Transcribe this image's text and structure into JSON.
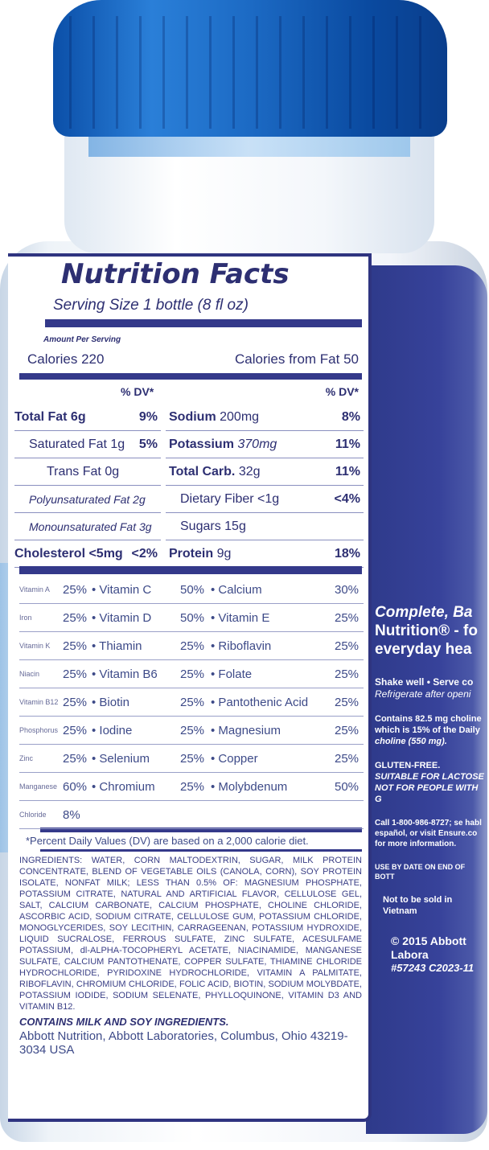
{
  "colors": {
    "cap": "#1c6ac4",
    "navy": "#2f3480",
    "panel_text": "#2d2f72"
  },
  "nutrition": {
    "title": "Nutrition Facts",
    "serving": "Serving Size 1 bottle (8 fl oz)",
    "amount_per_serving": "Amount Per Serving",
    "calories": "Calories 220",
    "calories_from_fat": "Calories from Fat 50",
    "dv_header": "% DV*",
    "left_rows": [
      {
        "label": "Total Fat 6g",
        "dv": "9%"
      },
      {
        "label": "Saturated Fat 1g",
        "dv": "5%"
      },
      {
        "label": "Trans Fat 0g",
        "dv": ""
      },
      {
        "label": "Polyunsaturated Fat 2g",
        "dv": ""
      },
      {
        "label": "Monounsaturated Fat 3g",
        "dv": ""
      },
      {
        "label": "Cholesterol <5mg",
        "dv": "<2%"
      }
    ],
    "right_rows": [
      {
        "label": "Sodium",
        "amount": "200mg",
        "dv": "8%"
      },
      {
        "label": "Potassium",
        "amount": "370mg",
        "dv": "11%"
      },
      {
        "label": "Total Carb.",
        "amount": "32g",
        "dv": "11%"
      },
      {
        "label": "Dietary Fiber <1g",
        "amount": "",
        "dv": "<4%"
      },
      {
        "label": "Sugars 15g",
        "amount": "",
        "dv": ""
      },
      {
        "label": "Protein",
        "amount": "9g",
        "dv": "18%"
      }
    ],
    "vitamins": [
      [
        "Vitamin A",
        "25%",
        "Vitamin C",
        "50%",
        "Calcium",
        "30%"
      ],
      [
        "Iron",
        "25%",
        "Vitamin D",
        "50%",
        "Vitamin E",
        "25%"
      ],
      [
        "Vitamin K",
        "25%",
        "Thiamin",
        "25%",
        "Riboflavin",
        "25%"
      ],
      [
        "Niacin",
        "25%",
        "Vitamin B6",
        "25%",
        "Folate",
        "25%"
      ],
      [
        "Vitamin B12",
        "25%",
        "Biotin",
        "25%",
        "Pantothenic Acid",
        "25%"
      ],
      [
        "Phosphorus",
        "25%",
        "Iodine",
        "25%",
        "Magnesium",
        "25%"
      ],
      [
        "Zinc",
        "25%",
        "Selenium",
        "25%",
        "Copper",
        "25%"
      ],
      [
        "Manganese",
        "60%",
        "Chromium",
        "25%",
        "Molybdenum",
        "50%"
      ],
      [
        "Chloride",
        "8%",
        "",
        "",
        "",
        ""
      ]
    ],
    "footnote": "*Percent Daily Values (DV) are based on a 2,000 calorie diet.",
    "ingredients": "INGREDIENTS: WATER, CORN MALTODEXTRIN, SUGAR, MILK PROTEIN CONCENTRATE, BLEND OF VEGETABLE OILS (CANOLA, CORN), SOY PROTEIN ISOLATE, NONFAT MILK; LESS THAN 0.5% OF: MAGNESIUM PHOSPHATE, POTASSIUM CITRATE, NATURAL AND ARTIFICIAL FLAVOR, CELLULOSE GEL, SALT, CALCIUM CARBONATE, CALCIUM PHOSPHATE, CHOLINE CHLORIDE, ASCORBIC ACID, SODIUM CITRATE, CELLULOSE GUM, POTASSIUM CHLORIDE, MONOGLYCERIDES, SOY LECITHIN, CARRAGEENAN, POTASSIUM HYDROXIDE, LIQUID SUCRALOSE, FERROUS SULFATE, ZINC SULFATE, ACESULFAME POTASSIUM, dl-ALPHA-TOCOPHERYL ACETATE, NIACINAMIDE, MANGANESE SULFATE, CALCIUM PANTOTHENATE, COPPER SULFATE, THIAMINE CHLORIDE HYDROCHLORIDE, PYRIDOXINE HYDROCHLORIDE, VITAMIN A PALMITATE, RIBOFLAVIN, CHROMIUM CHLORIDE, FOLIC ACID, BIOTIN, SODIUM MOLYBDATE, POTASSIUM IODIDE, SODIUM SELENATE, PHYLLOQUINONE, VITAMIN D3 AND VITAMIN B12.",
    "contains": "CONTAINS MILK AND SOY INGREDIENTS.",
    "manufacturer": "Abbott Nutrition, Abbott Laboratories, Columbus, Ohio 43219-3034 USA"
  },
  "side_panel": {
    "tagline": [
      "Complete, Ba",
      "Nutrition® - fo",
      "everyday hea"
    ],
    "shake": "Shake well • Serve co",
    "refrigerate": "Refrigerate after openi",
    "choline": [
      "Contains 82.5 mg choline",
      "which is 15% of the Daily",
      "choline (550 mg)."
    ],
    "gluten": "GLUTEN-FREE.",
    "lactose": "SUITABLE FOR LACTOSE",
    "not_for": "NOT FOR PEOPLE WITH G",
    "call": [
      "Call 1-800-986-8727; se habl",
      "español, or visit Ensure.co",
      "for more information."
    ],
    "use_by": "USE BY DATE ON END OF BOTT",
    "not_sold": "Not to be sold in Vietnam",
    "copyright": "© 2015 Abbott Labora",
    "code": "#57243  C2023-11"
  }
}
